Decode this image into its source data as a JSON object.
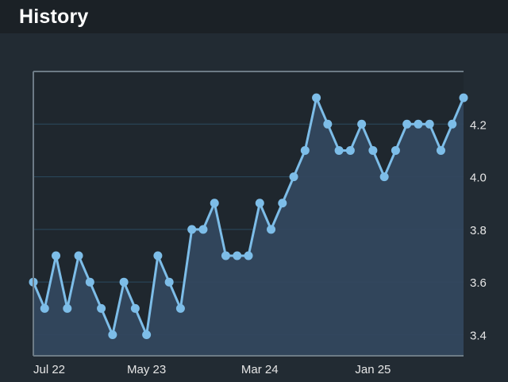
{
  "header": {
    "title": "History"
  },
  "colors": {
    "background": "#222b33",
    "header_background": "#1b2126",
    "line": "#7dbde8",
    "fill": "#33475e",
    "grid": "#2b4a5e",
    "frame": "#6d7b86",
    "axis_text": "#e6e6e6"
  },
  "chart_data": {
    "type": "area",
    "title": "",
    "xlabel": "",
    "ylabel": "",
    "ylim": [
      3.32,
      4.4
    ],
    "y_ticks": [
      "3.4",
      "3.6",
      "3.8",
      "4.0",
      "4.2"
    ],
    "y_tick_values": [
      3.4,
      3.6,
      3.8,
      4.0,
      4.2
    ],
    "y_axis_side": "right",
    "x_ticks": [
      "Jul 22",
      "May 23",
      "Mar 24",
      "Jan 25"
    ],
    "x_tick_index": [
      0,
      10,
      20,
      30
    ],
    "grid": true,
    "series": [
      {
        "values": [
          3.6,
          3.5,
          3.7,
          3.5,
          3.7,
          3.6,
          3.5,
          3.4,
          3.6,
          3.5,
          3.4,
          3.7,
          3.6,
          3.5,
          3.8,
          3.8,
          3.9,
          3.7,
          3.7,
          3.7,
          3.9,
          3.8,
          3.9,
          4.0,
          4.1,
          4.3,
          4.2,
          4.1,
          4.1,
          4.2,
          4.1,
          4.0,
          4.1,
          4.2,
          4.2,
          4.2,
          4.1,
          4.2,
          4.3
        ]
      }
    ]
  }
}
